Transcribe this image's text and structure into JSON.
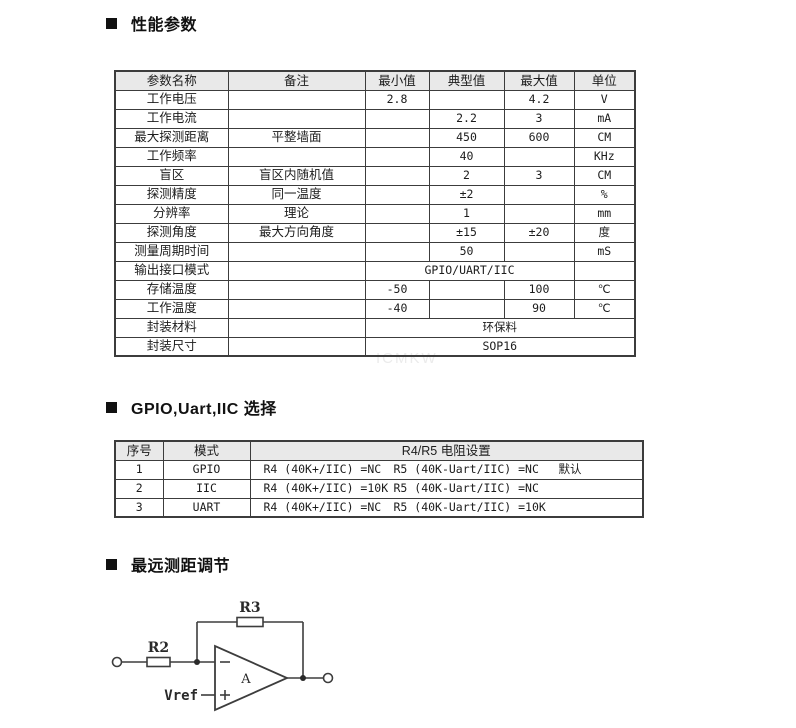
{
  "sections": {
    "performance": {
      "title": "性能参数"
    },
    "mode_select": {
      "title": "GPIO,Uart,IIC 选择"
    },
    "range_adjust": {
      "title": "最远测距调节"
    }
  },
  "perf_table": {
    "columns": [
      "参数名称",
      "备注",
      "最小值",
      "典型值",
      "最大值",
      "单位"
    ],
    "rows": [
      {
        "name": "工作电压",
        "note": "",
        "min": "2.8",
        "typ": "",
        "max": "4.2",
        "unit": "V"
      },
      {
        "name": "工作电流",
        "note": "",
        "min": "",
        "typ": "2.2",
        "max": "3",
        "unit": "mA"
      },
      {
        "name": "最大探测距离",
        "note": "平整墙面",
        "min": "",
        "typ": "450",
        "max": "600",
        "unit": "CM"
      },
      {
        "name": "工作频率",
        "note": "",
        "min": "",
        "typ": "40",
        "max": "",
        "unit": "KHz"
      },
      {
        "name": "盲区",
        "note": "盲区内随机值",
        "min": "",
        "typ": "2",
        "max": "3",
        "unit": "CM"
      },
      {
        "name": "探测精度",
        "note": "同一温度",
        "min": "",
        "typ": "±2",
        "max": "",
        "unit": "%"
      },
      {
        "name": "分辨率",
        "note": "理论",
        "min": "",
        "typ": "1",
        "max": "",
        "unit": "mm"
      },
      {
        "name": "探测角度",
        "note": "最大方向角度",
        "min": "",
        "typ": "±15",
        "max": "±20",
        "unit": "度"
      },
      {
        "name": "测量周期时间",
        "note": "",
        "min": "",
        "typ": "50",
        "max": "",
        "unit": "mS"
      },
      {
        "name": "输出接口模式",
        "note": "",
        "span3": "GPIO/UART/IIC",
        "unit": ""
      },
      {
        "name": "存储温度",
        "note": "",
        "min": "-50",
        "typ": "",
        "max": "100",
        "unit": "℃"
      },
      {
        "name": "工作温度",
        "note": "",
        "min": "-40",
        "typ": "",
        "max": "90",
        "unit": "℃"
      },
      {
        "name": "封装材料",
        "note": "",
        "span4": "环保料"
      },
      {
        "name": "封装尺寸",
        "note": "",
        "span4": "SOP16"
      }
    ]
  },
  "mode_table": {
    "columns": [
      "序号",
      "模式",
      "R4/R5 电阻设置"
    ],
    "rows": [
      {
        "no": "1",
        "mode": "GPIO",
        "r4": "R4 (40K+/IIC) =NC",
        "r5": "R5 (40K-Uart/IIC) =NC",
        "note": "默认"
      },
      {
        "no": "2",
        "mode": "IIC",
        "r4": "R4 (40K+/IIC) =10K",
        "r5": "R5 (40K-Uart/IIC) =NC",
        "note": ""
      },
      {
        "no": "3",
        "mode": "UART",
        "r4": "R4 (40K+/IIC) =NC",
        "r5": "R5 (40K-Uart/IIC) =10K",
        "note": ""
      }
    ]
  },
  "watermark": "ICMKW",
  "circuit": {
    "r2_label": "R2",
    "r3_label": "R3",
    "vref_label": "Vref",
    "amp_label": "A",
    "inverting_input": "-",
    "non_inverting_input": "+"
  },
  "colors": {
    "header_bg": "#e9e9e9",
    "border": "#3c3c3c",
    "text": "#1c1c1c",
    "watermark": "#ebebeb",
    "circuit_stroke": "#3d3d3d"
  }
}
